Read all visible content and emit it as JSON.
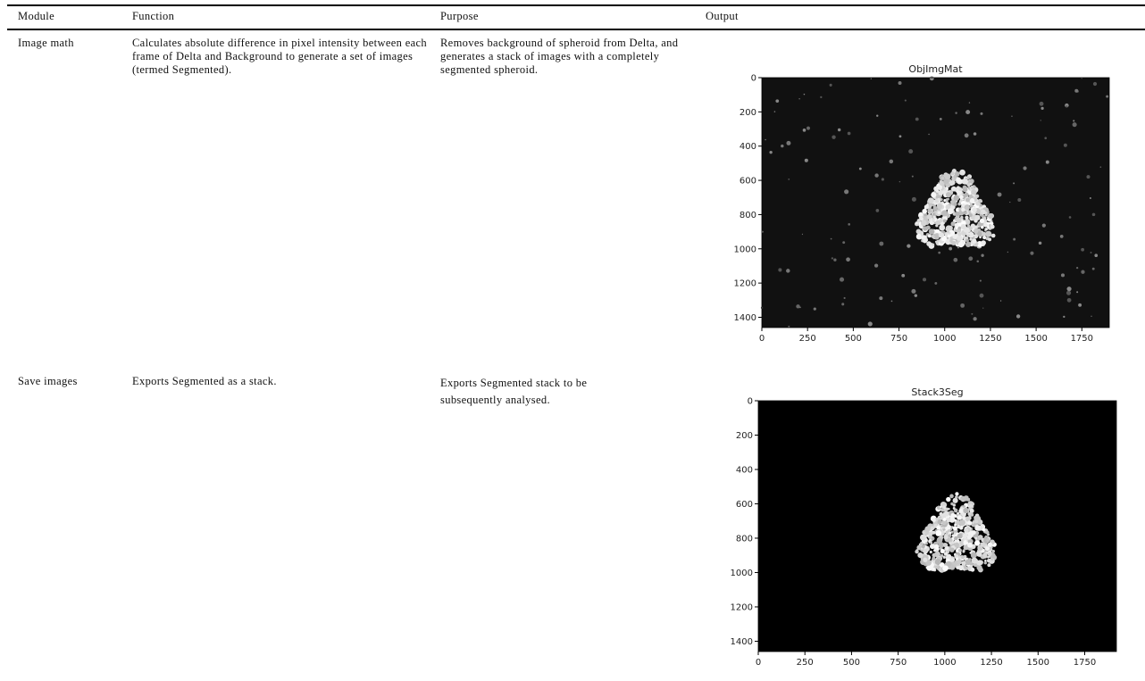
{
  "table": {
    "header": [
      "Module",
      "Function",
      "Purpose",
      "Output"
    ],
    "rows": [
      [
        "Image math",
        "Calculates absolute difference in pixel intensity between each frame of Delta and Background to generate a set of images (termed Segmented).",
        "Removes background of spheroid from Delta, and generates a stack of images with a completely segmented spheroid."
      ],
      [
        "Save images",
        "Exports Segmented as a stack.",
        "Exports Segmented stack to be subsequently analysed."
      ]
    ]
  },
  "figures": [
    {
      "title": "ObjImgMat",
      "xlim": [
        0,
        1900
      ],
      "ylim": [
        1460,
        0
      ],
      "xticks": [
        0,
        250,
        500,
        750,
        1000,
        1250,
        1500,
        1750
      ],
      "yticks": [
        0,
        200,
        400,
        600,
        800,
        1000,
        1200,
        1400
      ]
    },
    {
      "title": "Stack3Seg",
      "xlim": [
        0,
        1920
      ],
      "ylim": [
        1460,
        0
      ],
      "xticks": [
        0,
        250,
        500,
        750,
        1000,
        1250,
        1500,
        1750
      ],
      "yticks": [
        0,
        200,
        400,
        600,
        800,
        1000,
        1200,
        1400
      ]
    }
  ]
}
